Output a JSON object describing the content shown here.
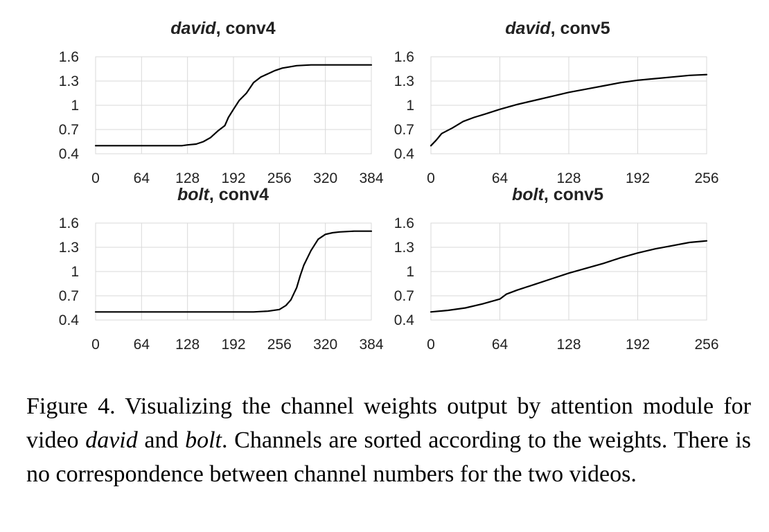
{
  "chart_data": [
    {
      "type": "line",
      "title_italic": "david",
      "title_rest": ", conv4",
      "x_ticks": [
        "0",
        "64",
        "128",
        "192",
        "256",
        "320",
        "384"
      ],
      "y_ticks": [
        "0.4",
        "0.7",
        "1",
        "1.3",
        "1.6"
      ],
      "xlim": [
        0,
        384
      ],
      "ylim": [
        0.4,
        1.6
      ],
      "grid": true,
      "x": [
        0,
        64,
        100,
        120,
        128,
        140,
        150,
        160,
        170,
        180,
        185,
        192,
        200,
        210,
        220,
        230,
        240,
        250,
        260,
        280,
        300,
        320,
        350,
        384
      ],
      "y": [
        0.5,
        0.5,
        0.5,
        0.5,
        0.51,
        0.52,
        0.55,
        0.6,
        0.68,
        0.75,
        0.85,
        0.95,
        1.06,
        1.15,
        1.28,
        1.35,
        1.39,
        1.43,
        1.46,
        1.49,
        1.5,
        1.5,
        1.5,
        1.5
      ]
    },
    {
      "type": "line",
      "title_italic": "david",
      "title_rest": ", conv5",
      "x_ticks": [
        "0",
        "64",
        "128",
        "192",
        "256"
      ],
      "y_ticks": [
        "0.4",
        "0.7",
        "1",
        "1.3",
        "1.6"
      ],
      "xlim": [
        0,
        256
      ],
      "ylim": [
        0.4,
        1.6
      ],
      "grid": true,
      "x": [
        0,
        5,
        10,
        20,
        30,
        40,
        50,
        64,
        80,
        96,
        112,
        128,
        144,
        160,
        176,
        192,
        208,
        224,
        240,
        256
      ],
      "y": [
        0.5,
        0.57,
        0.65,
        0.72,
        0.8,
        0.85,
        0.89,
        0.95,
        1.01,
        1.06,
        1.11,
        1.16,
        1.2,
        1.24,
        1.28,
        1.31,
        1.33,
        1.35,
        1.37,
        1.38
      ]
    },
    {
      "type": "line",
      "title_italic": "bolt",
      "title_rest": ", conv4",
      "x_ticks": [
        "0",
        "64",
        "128",
        "192",
        "256",
        "320",
        "384"
      ],
      "y_ticks": [
        "0.4",
        "0.7",
        "1",
        "1.3",
        "1.6"
      ],
      "xlim": [
        0,
        384
      ],
      "ylim": [
        0.4,
        1.6
      ],
      "grid": true,
      "x": [
        0,
        64,
        128,
        192,
        220,
        240,
        256,
        265,
        272,
        280,
        285,
        290,
        300,
        310,
        320,
        330,
        340,
        360,
        384
      ],
      "y": [
        0.5,
        0.5,
        0.5,
        0.5,
        0.5,
        0.51,
        0.53,
        0.58,
        0.65,
        0.8,
        0.95,
        1.08,
        1.26,
        1.4,
        1.46,
        1.48,
        1.49,
        1.5,
        1.5
      ]
    },
    {
      "type": "line",
      "title_italic": "bolt",
      "title_rest": ", conv5",
      "x_ticks": [
        "0",
        "64",
        "128",
        "192",
        "256"
      ],
      "y_ticks": [
        "0.4",
        "0.7",
        "1",
        "1.3",
        "1.6"
      ],
      "xlim": [
        0,
        256
      ],
      "ylim": [
        0.4,
        1.6
      ],
      "grid": true,
      "x": [
        0,
        16,
        32,
        48,
        64,
        70,
        80,
        96,
        112,
        128,
        144,
        160,
        176,
        192,
        208,
        224,
        240,
        256
      ],
      "y": [
        0.5,
        0.52,
        0.55,
        0.6,
        0.66,
        0.72,
        0.77,
        0.84,
        0.91,
        0.98,
        1.04,
        1.1,
        1.17,
        1.23,
        1.28,
        1.32,
        1.36,
        1.38
      ]
    }
  ],
  "caption": {
    "part1": "Figure 4. Visualizing the channel weights output by attention module for video ",
    "em1": "david",
    "part2": " and ",
    "em2": "bolt",
    "part3": ". Channels are sorted according to the weights.  There is no correspondence between channel numbers for the two videos."
  }
}
